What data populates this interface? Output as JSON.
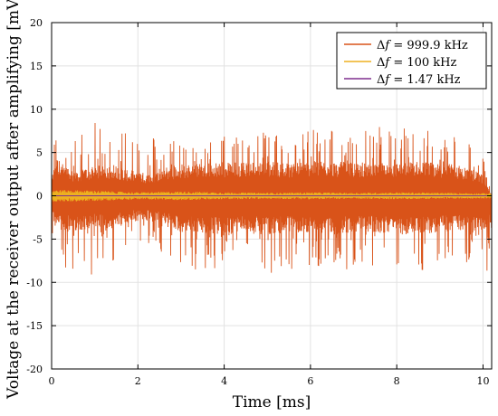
{
  "chart_data": {
    "type": "line",
    "title": "",
    "xlabel": "Time [ms]",
    "ylabel": "Voltage at the receiver output after amplifying [mV]",
    "xlim": [
      0,
      10.2
    ],
    "ylim": [
      -20,
      20
    ],
    "xticks": [
      0,
      2,
      4,
      6,
      8,
      10
    ],
    "yticks": [
      -20,
      -15,
      -10,
      -5,
      0,
      5,
      10,
      15,
      20
    ],
    "grid": true,
    "legend_position": "top-right",
    "series": [
      {
        "name": "Δf = 999.9 kHz",
        "legend_parts": [
          "Δ",
          "f",
          " = 999.9 kHz"
        ],
        "color": "#d95319",
        "description_of_shape": "dense noise-like oscillation",
        "x_points": [
          0,
          0.1,
          0.2,
          0.3,
          0.5,
          0.7,
          1.0,
          1.5,
          1.8,
          2.0,
          2.3,
          2.6,
          3.0,
          3.5,
          4.0,
          4.5,
          5.0,
          5.5,
          6.0,
          6.5,
          7.0,
          7.5,
          8.0,
          8.5,
          9.0,
          9.5,
          10.0,
          10.2
        ],
        "upper_envelope": [
          5.0,
          10.5,
          9.5,
          7.5,
          6.5,
          7.5,
          8.5,
          8.5,
          8.0,
          7.5,
          7.0,
          7.0,
          6.5,
          7.5,
          7.0,
          7.5,
          8.0,
          7.5,
          8.5,
          8.0,
          7.0,
          8.0,
          8.0,
          8.5,
          7.5,
          7.0,
          4.5,
          0.0
        ],
        "lower_envelope": [
          -4.0,
          -7.0,
          -7.5,
          -8.5,
          -9.0,
          -9.5,
          -9.0,
          -8.0,
          -6.5,
          -6.5,
          -6.0,
          -7.5,
          -8.5,
          -9.0,
          -8.5,
          -8.5,
          -9.0,
          -8.5,
          -8.5,
          -9.0,
          -8.5,
          -8.5,
          -8.5,
          -9.0,
          -8.5,
          -8.0,
          -8.0,
          -10.0
        ],
        "inner_upper": [
          2.0,
          4.5,
          4.0,
          3.5,
          3.0,
          3.0,
          3.5,
          3.5,
          3.0,
          2.8,
          2.5,
          3.0,
          3.5,
          3.8,
          3.8,
          4.0,
          4.0,
          3.8,
          4.0,
          4.0,
          3.8,
          3.8,
          3.8,
          4.0,
          3.8,
          3.5,
          2.5,
          0.0
        ],
        "inner_lower": [
          -2.0,
          -4.0,
          -4.2,
          -4.2,
          -4.0,
          -4.0,
          -3.8,
          -3.8,
          -3.0,
          -3.0,
          -3.0,
          -3.5,
          -4.2,
          -4.5,
          -4.5,
          -4.2,
          -4.5,
          -4.2,
          -4.5,
          -4.5,
          -4.2,
          -4.2,
          -4.5,
          -4.5,
          -4.2,
          -4.0,
          -4.0,
          -4.0
        ]
      },
      {
        "name": "Δf = 100 kHz",
        "legend_parts": [
          "Δ",
          "f",
          " = 100 kHz"
        ],
        "color": "#edb120",
        "description_of_shape": "small oscillation about zero",
        "x_points": [
          0,
          1,
          2,
          3,
          4,
          5,
          6,
          7,
          8,
          9,
          10,
          10.2
        ],
        "amplitude": [
          0.7,
          0.6,
          0.4,
          0.5,
          0.4,
          0.35,
          0.4,
          0.35,
          0.4,
          0.35,
          0.3,
          0.3
        ]
      },
      {
        "name": "Δf = 1.47 kHz",
        "legend_parts": [
          "Δ",
          "f",
          " = 1.47 kHz"
        ],
        "color": "#7e2f8e",
        "description_of_shape": "nearly flat near zero",
        "x_points": [
          0,
          10.2
        ],
        "values": [
          0.0,
          0.0
        ]
      }
    ]
  }
}
